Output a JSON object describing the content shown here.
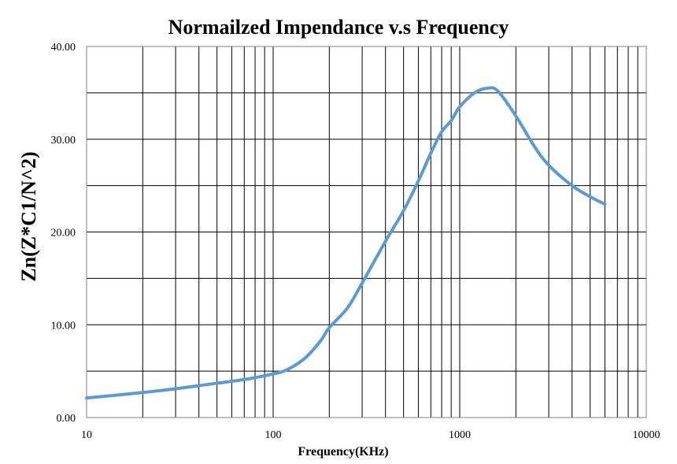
{
  "chart_data": {
    "type": "line",
    "title": "Normailzed Impendance v.s Frequency",
    "xlabel": "Frequency(KHz)",
    "ylabel": "Zn(Z*C1/N^2)",
    "x_scale": "log",
    "xlim": [
      10,
      10000
    ],
    "ylim": [
      0,
      40
    ],
    "x_ticks": [
      10,
      100,
      1000,
      10000
    ],
    "x_tick_labels": [
      "10",
      "100",
      "1000",
      "10000"
    ],
    "y_ticks": [
      0,
      10,
      20,
      30,
      40
    ],
    "y_tick_labels": [
      "0.00",
      "10.00",
      "20.00",
      "30.00",
      "40.00"
    ],
    "y_minor_gridlines": [
      5,
      15,
      25,
      35
    ],
    "grid": true,
    "legend": "none",
    "series_color": "#5b9bd5",
    "series": [
      {
        "x": [
          10,
          20,
          30,
          50,
          70,
          100,
          120,
          150,
          180,
          200,
          250,
          300,
          400,
          500,
          600,
          700,
          800,
          900,
          1000,
          1200,
          1400,
          1600,
          2000,
          2500,
          3000,
          4000,
          5000,
          6000
        ],
        "y": [
          2.1,
          2.7,
          3.1,
          3.7,
          4.1,
          4.7,
          5.2,
          6.5,
          8.3,
          9.7,
          11.8,
          14.5,
          19.0,
          22.3,
          25.5,
          28.5,
          30.8,
          32.0,
          33.5,
          35.0,
          35.5,
          35.2,
          32.5,
          29.3,
          27.2,
          25.0,
          23.8,
          23.0
        ]
      }
    ]
  }
}
